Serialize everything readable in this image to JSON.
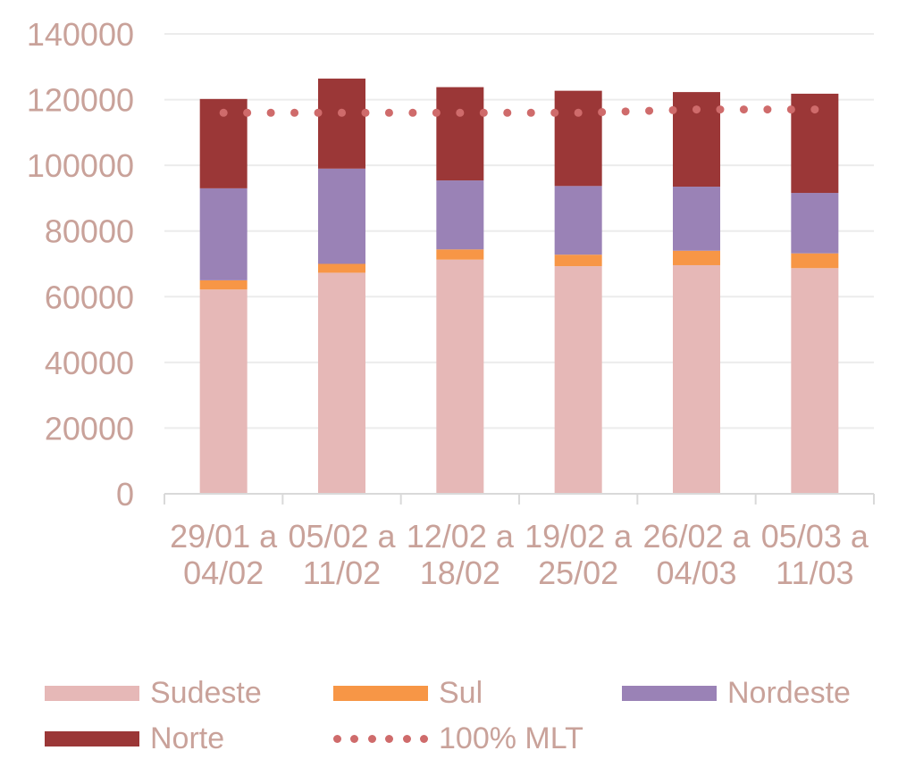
{
  "chart_data": {
    "type": "bar",
    "stacked": true,
    "categories": [
      [
        "29/01 a",
        "04/02"
      ],
      [
        "05/02 a",
        "11/02"
      ],
      [
        "12/02 a",
        "18/02"
      ],
      [
        "19/02 a",
        "25/02"
      ],
      [
        "26/02 a",
        "04/03"
      ],
      [
        "05/03 a",
        "11/03"
      ]
    ],
    "series": [
      {
        "name": "Sudeste",
        "color": "#e6b8b7",
        "values": [
          62200,
          67300,
          71300,
          69300,
          69600,
          68700
        ]
      },
      {
        "name": "Sul",
        "color": "#f79646",
        "values": [
          2800,
          2700,
          3100,
          3500,
          4400,
          4500
        ]
      },
      {
        "name": "Nordeste",
        "color": "#9a82b6",
        "values": [
          28000,
          29000,
          21000,
          20900,
          19500,
          18400
        ]
      },
      {
        "name": "Norte",
        "color": "#9b3737",
        "values": [
          27200,
          27400,
          28400,
          29000,
          28800,
          30200
        ]
      }
    ],
    "line": {
      "name": "100% MLT",
      "color": "#cf6b6b",
      "values": [
        116000,
        116000,
        116000,
        116000,
        117000,
        117000
      ]
    },
    "ylim": [
      0,
      140000
    ],
    "yticks": [
      0,
      20000,
      40000,
      60000,
      80000,
      100000,
      120000,
      140000
    ],
    "grid": true,
    "legend_position": "bottom"
  },
  "legend": [
    {
      "label": "Sudeste",
      "kind": "bar",
      "color": "#e6b8b7"
    },
    {
      "label": "Sul",
      "kind": "bar",
      "color": "#f79646"
    },
    {
      "label": "Nordeste",
      "kind": "bar",
      "color": "#9a82b6"
    },
    {
      "label": "Norte",
      "kind": "bar",
      "color": "#9b3737"
    },
    {
      "label": "100% MLT",
      "kind": "dotted-line",
      "color": "#cf6b6b"
    }
  ]
}
